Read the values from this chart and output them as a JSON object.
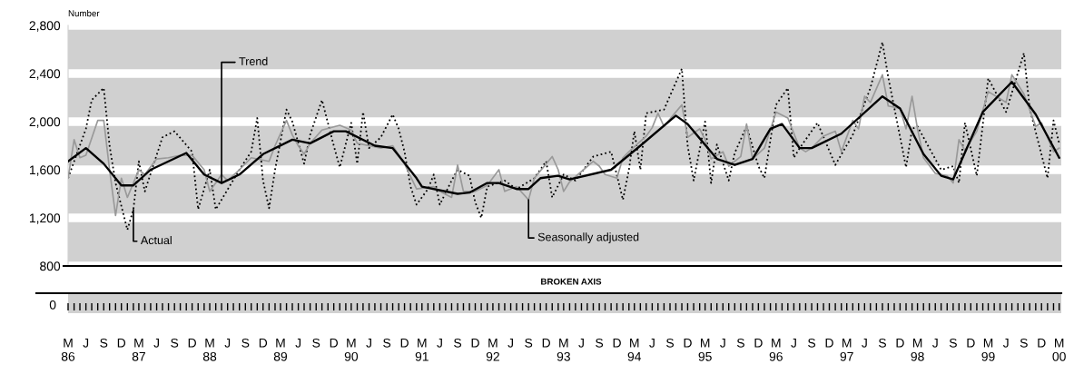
{
  "chart_data": {
    "type": "line",
    "ylabel": "Number",
    "annotations": [
      "BROKEN AXIS",
      "0"
    ],
    "xlim": [
      "1986-03",
      "2000-03-12"
    ],
    "ylim": [
      800,
      2800
    ],
    "yticks": [
      800,
      {
        "value": 1200,
        "label": "1,200"
      },
      {
        "value": 1600,
        "label": "1,600"
      },
      {
        "value": 2000,
        "label": "2,000"
      },
      {
        "value": 2400,
        "label": "2,400"
      },
      {
        "value": 2800,
        "label": "2,800"
      }
    ],
    "xticks": [
      {
        "value": "1986-03",
        "label": "M\n86"
      },
      {
        "value": "1986-06",
        "label": "J"
      },
      {
        "value": "1986-09",
        "label": "S"
      },
      {
        "value": "1986-12",
        "label": "D"
      },
      {
        "value": "1987-03",
        "label": "M\n87"
      },
      {
        "value": "1987-06",
        "label": "J"
      },
      {
        "value": "1987-09",
        "label": "S"
      },
      {
        "value": "1987-12",
        "label": "D"
      },
      {
        "value": "1988-03",
        "label": "M\n88"
      },
      {
        "value": "1988-06",
        "label": "J"
      },
      {
        "value": "1988-09",
        "label": "S"
      },
      {
        "value": "1988-12",
        "label": "D"
      },
      {
        "value": "1989-03",
        "label": "M\n89"
      },
      {
        "value": "1989-06",
        "label": "J"
      },
      {
        "value": "1989-09",
        "label": "S"
      },
      {
        "value": "1989-12",
        "label": "D"
      },
      {
        "value": "1990-03",
        "label": "M\n90"
      },
      {
        "value": "1990-06",
        "label": "J"
      },
      {
        "value": "1990-09",
        "label": "S"
      },
      {
        "value": "1990-12",
        "label": "D"
      },
      {
        "value": "1991-03",
        "label": "M\n91"
      },
      {
        "value": "1991-06",
        "label": "J"
      },
      {
        "value": "1991-09",
        "label": "S"
      },
      {
        "value": "1991-12",
        "label": "D"
      },
      {
        "value": "1992-03",
        "label": "M\n92"
      },
      {
        "value": "1992-06",
        "label": "J"
      },
      {
        "value": "1992-09",
        "label": "S"
      },
      {
        "value": "1992-12",
        "label": "D"
      },
      {
        "value": "1993-03",
        "label": "M\n93"
      },
      {
        "value": "1993-06",
        "label": "J"
      },
      {
        "value": "1993-09",
        "label": "S"
      },
      {
        "value": "1993-12",
        "label": "D"
      },
      {
        "value": "1994-03",
        "label": "M\n94"
      },
      {
        "value": "1994-06",
        "label": "J"
      },
      {
        "value": "1994-09",
        "label": "S"
      },
      {
        "value": "1994-12",
        "label": "D"
      },
      {
        "value": "1995-03",
        "label": "M\n95"
      },
      {
        "value": "1995-06",
        "label": "J"
      },
      {
        "value": "1995-09",
        "label": "S"
      },
      {
        "value": "1995-12",
        "label": "D"
      },
      {
        "value": "1996-03",
        "label": "M\n96"
      },
      {
        "value": "1996-06",
        "label": "J"
      },
      {
        "value": "1996-09",
        "label": "S"
      },
      {
        "value": "1996-12",
        "label": "D"
      },
      {
        "value": "1997-03",
        "label": "M\n97"
      },
      {
        "value": "1997-06",
        "label": "J"
      },
      {
        "value": "1997-09",
        "label": "S"
      },
      {
        "value": "1997-12",
        "label": "D"
      },
      {
        "value": "1998-03",
        "label": "M\n98"
      },
      {
        "value": "1998-06",
        "label": "J"
      },
      {
        "value": "1998-09",
        "label": "S"
      },
      {
        "value": "1998-12",
        "label": "D"
      },
      {
        "value": "1999-03",
        "label": "M\n99"
      },
      {
        "value": "1999-06",
        "label": "J"
      },
      {
        "value": "1999-09",
        "label": "S"
      },
      {
        "value": "1999-12",
        "label": "D"
      },
      {
        "value": "2000-03",
        "label": "M\n00"
      }
    ],
    "grid": "y",
    "series": [
      {
        "name": "Actual",
        "color": "#000000",
        "line_style": "dotted",
        "x": [
          "1986-03",
          "1986-06",
          "1986-07",
          "1986-09",
          "1986-10",
          "1986-11",
          "1987-01",
          "1987-02",
          "1987-03",
          "1987-04",
          "1987-07",
          "1987-09",
          "1987-12",
          "1988-01",
          "1988-03",
          "1988-04",
          "1988-08",
          "1988-10",
          "1988-11",
          "1988-12",
          "1989-01",
          "1989-02",
          "1989-04",
          "1989-05",
          "1989-07",
          "1989-08",
          "1989-10",
          "1989-12",
          "1990-01",
          "1990-03",
          "1990-04",
          "1990-05",
          "1990-06",
          "1990-08",
          "1990-10",
          "1990-11",
          "1990-12",
          "1991-01",
          "1991-02",
          "1991-04",
          "1991-05",
          "1991-06",
          "1991-08",
          "1991-09",
          "1991-11",
          "1991-12",
          "1992-01",
          "1992-02",
          "1992-05",
          "1992-07",
          "1992-10",
          "1992-12",
          "1993-01",
          "1993-03",
          "1993-05",
          "1993-08",
          "1993-11",
          "1994-01",
          "1994-02",
          "1994-03",
          "1994-04",
          "1994-05",
          "1994-08",
          "1994-11",
          "1994-12",
          "1995-01",
          "1995-03",
          "1995-04",
          "1995-05",
          "1995-07",
          "1995-08",
          "1995-10",
          "1995-12",
          "1996-01",
          "1996-03",
          "1996-05",
          "1996-06",
          "1996-07",
          "1996-10",
          "1997-01",
          "1997-04",
          "1997-07",
          "1997-09",
          "1997-10",
          "1998-01",
          "1998-02",
          "1998-03",
          "1998-07",
          "1998-09",
          "1998-10",
          "1998-11",
          "1999-01",
          "1999-03",
          "1999-06",
          "1999-09",
          "1999-10",
          "2000-01",
          "2000-02",
          "2000-03"
        ],
        "values": [
          1530,
          1940,
          2180,
          2280,
          1800,
          1490,
          1100,
          1270,
          1670,
          1420,
          1870,
          1920,
          1750,
          1270,
          1600,
          1270,
          1600,
          1750,
          2030,
          1510,
          1280,
          1600,
          2100,
          2000,
          1650,
          1890,
          2180,
          1800,
          1620,
          1990,
          1650,
          2080,
          1780,
          1870,
          2060,
          1940,
          1750,
          1460,
          1310,
          1440,
          1560,
          1310,
          1510,
          1600,
          1550,
          1330,
          1200,
          1460,
          1510,
          1440,
          1530,
          1670,
          1370,
          1560,
          1510,
          1710,
          1750,
          1350,
          1600,
          1920,
          1600,
          2070,
          2100,
          2440,
          1800,
          1510,
          2000,
          1490,
          1810,
          1510,
          1740,
          1960,
          1630,
          1530,
          2140,
          2280,
          1700,
          1780,
          1990,
          1640,
          1890,
          2280,
          2660,
          2370,
          1620,
          1940,
          1960,
          1600,
          1630,
          1490,
          1990,
          1550,
          2360,
          2080,
          2570,
          2110,
          1530,
          2010,
          1820
        ]
      },
      {
        "name": "Seasonally adjusted",
        "color": "#999999",
        "line_style": "solid",
        "x": [
          "1986-03",
          "1986-04",
          "1986-05",
          "1986-06",
          "1986-08",
          "1986-09",
          "1986-10",
          "1986-11",
          "1986-12",
          "1987-01",
          "1987-02",
          "1987-03",
          "1987-04",
          "1987-06",
          "1987-08",
          "1987-10",
          "1987-12",
          "1988-02",
          "1988-03",
          "1988-04",
          "1988-05",
          "1988-06",
          "1988-08",
          "1988-10",
          "1989-01",
          "1989-02",
          "1989-04",
          "1989-05",
          "1989-06",
          "1989-07",
          "1989-08",
          "1989-10",
          "1990-01",
          "1990-03",
          "1990-04",
          "1990-06",
          "1990-08",
          "1990-10",
          "1990-12",
          "1991-02",
          "1991-05",
          "1991-06",
          "1991-08",
          "1991-09",
          "1991-10",
          "1991-12",
          "1992-02",
          "1992-04",
          "1992-05",
          "1992-07",
          "1992-09",
          "1992-10",
          "1993-01",
          "1993-02",
          "1993-03",
          "1993-04",
          "1993-08",
          "1993-09",
          "1993-10",
          "1993-12",
          "1994-01",
          "1994-02",
          "1994-05",
          "1994-06",
          "1994-07",
          "1994-08",
          "1994-10",
          "1994-11",
          "1994-12",
          "1995-02",
          "1995-03",
          "1995-04",
          "1995-06",
          "1995-07",
          "1995-09",
          "1995-10",
          "1995-11",
          "1996-01",
          "1996-03",
          "1996-05",
          "1996-07",
          "1996-08",
          "1996-09",
          "1996-11",
          "1997-01",
          "1997-02",
          "1997-04",
          "1997-05",
          "1997-06",
          "1997-07",
          "1997-09",
          "1997-10",
          "1997-12",
          "1998-01",
          "1998-02",
          "1998-03",
          "1998-04",
          "1998-06",
          "1998-08",
          "1998-09",
          "1998-10",
          "1998-11",
          "1999-01",
          "1999-03",
          "1999-06",
          "1999-07",
          "1999-09",
          "1999-11",
          "1999-12",
          "2000-02",
          "2000-03"
        ],
        "values": [
          1530,
          1850,
          1700,
          1720,
          2010,
          2010,
          1600,
          1220,
          1530,
          1370,
          1490,
          1600,
          1560,
          1690,
          1700,
          1720,
          1720,
          1600,
          1420,
          1490,
          1560,
          1510,
          1600,
          1700,
          1670,
          1800,
          2010,
          1890,
          1800,
          1730,
          1820,
          1930,
          1970,
          1930,
          1820,
          1800,
          1780,
          1800,
          1650,
          1440,
          1460,
          1420,
          1370,
          1640,
          1420,
          1420,
          1470,
          1600,
          1420,
          1460,
          1350,
          1530,
          1710,
          1600,
          1420,
          1500,
          1670,
          1630,
          1560,
          1530,
          1700,
          1750,
          1880,
          1950,
          2070,
          1960,
          2080,
          2140,
          1870,
          1940,
          1850,
          1690,
          1750,
          1630,
          1710,
          1980,
          1690,
          1780,
          2080,
          2030,
          1780,
          1750,
          1780,
          1880,
          1920,
          1750,
          2010,
          1940,
          2210,
          2160,
          2390,
          2130,
          2110,
          1940,
          2210,
          1940,
          1700,
          1570,
          1550,
          1490,
          1850,
          1760,
          1920,
          2250,
          2160,
          2390,
          2230,
          1960,
          1990,
          1750,
          1780
        ]
      },
      {
        "name": "Trend",
        "color": "#000000",
        "line_style": "solid",
        "x": [
          "1986-03",
          "1986-06",
          "1986-09",
          "1986-12",
          "1987-02",
          "1987-05",
          "1987-11",
          "1988-02",
          "1988-05",
          "1988-08",
          "1988-12",
          "1989-05",
          "1989-08",
          "1989-12",
          "1990-02",
          "1990-07",
          "1990-10",
          "1991-02",
          "1991-03",
          "1991-09",
          "1991-11",
          "1992-02",
          "1992-04",
          "1992-07",
          "1992-09",
          "1992-11",
          "1993-02",
          "1993-04",
          "1993-11",
          "1994-04",
          "1994-10",
          "1994-12",
          "1995-05",
          "1995-08",
          "1995-11",
          "1996-02",
          "1996-04",
          "1996-07",
          "1996-09",
          "1997-02",
          "1997-09",
          "1997-12",
          "1998-04",
          "1998-07",
          "1998-09",
          "1999-02",
          "1999-07",
          "1999-11",
          "2000-03"
        ],
        "values": [
          1670,
          1780,
          1650,
          1470,
          1470,
          1600,
          1740,
          1560,
          1490,
          1560,
          1730,
          1850,
          1820,
          1920,
          1920,
          1800,
          1780,
          1530,
          1460,
          1400,
          1410,
          1490,
          1490,
          1440,
          1440,
          1530,
          1550,
          1520,
          1600,
          1800,
          2050,
          1980,
          1690,
          1640,
          1690,
          1940,
          1980,
          1780,
          1780,
          1900,
          2210,
          2110,
          1730,
          1550,
          1520,
          2080,
          2330,
          2060,
          1700
        ]
      }
    ]
  }
}
